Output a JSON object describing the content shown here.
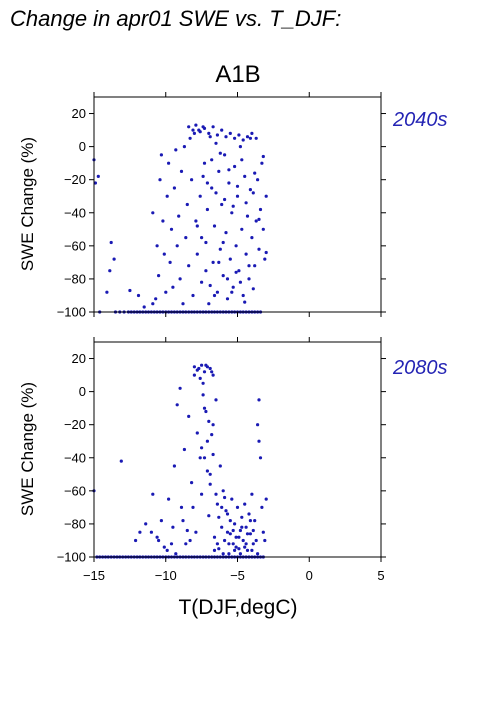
{
  "title": "Change in apr01 SWE vs. T_DJF:",
  "scenario": "A1B",
  "colors": {
    "points": "#1a1ab4",
    "period_label": "#2424b4"
  },
  "chart_data": [
    {
      "type": "scatter",
      "period_label": "2040s",
      "ylabel": "SWE Change (%)",
      "xlabel": "",
      "xlim": [
        -15,
        5
      ],
      "ylim": [
        -100,
        30
      ],
      "xticks": [
        -15,
        -10,
        -5,
        0,
        5
      ],
      "yticks": [
        -100,
        -80,
        -60,
        -40,
        -20,
        0,
        20
      ],
      "grid": false,
      "points": [
        [
          -15.0,
          -8
        ],
        [
          -14.9,
          -22
        ],
        [
          -14.7,
          -18
        ],
        [
          -14.6,
          -100
        ],
        [
          -14.1,
          -88
        ],
        [
          -13.9,
          -75
        ],
        [
          -13.8,
          -58
        ],
        [
          -13.6,
          -68
        ],
        [
          -13.5,
          -100
        ],
        [
          -13.2,
          -100
        ],
        [
          -12.9,
          -100
        ],
        [
          -12.6,
          -100
        ],
        [
          -12.4,
          -100
        ],
        [
          -12.2,
          -100
        ],
        [
          -12.0,
          -100
        ],
        [
          -11.8,
          -100
        ],
        [
          -11.6,
          -100
        ],
        [
          -11.4,
          -100
        ],
        [
          -11.2,
          -100
        ],
        [
          -11.0,
          -100
        ],
        [
          -10.8,
          -100
        ],
        [
          -10.6,
          -100
        ],
        [
          -10.4,
          -100
        ],
        [
          -10.2,
          -100
        ],
        [
          -10.0,
          -100
        ],
        [
          -9.8,
          -100
        ],
        [
          -9.6,
          -100
        ],
        [
          -9.4,
          -100
        ],
        [
          -9.2,
          -100
        ],
        [
          -9.0,
          -100
        ],
        [
          -8.8,
          -100
        ],
        [
          -8.6,
          -100
        ],
        [
          -8.4,
          -100
        ],
        [
          -8.2,
          -100
        ],
        [
          -8.0,
          -100
        ],
        [
          -7.8,
          -100
        ],
        [
          -7.6,
          -100
        ],
        [
          -7.4,
          -100
        ],
        [
          -7.2,
          -100
        ],
        [
          -7.0,
          -100
        ],
        [
          -6.8,
          -100
        ],
        [
          -6.6,
          -100
        ],
        [
          -6.4,
          -100
        ],
        [
          -6.2,
          -100
        ],
        [
          -6.0,
          -100
        ],
        [
          -5.8,
          -100
        ],
        [
          -5.6,
          -100
        ],
        [
          -5.4,
          -100
        ],
        [
          -5.2,
          -100
        ],
        [
          -5.0,
          -100
        ],
        [
          -4.8,
          -100
        ],
        [
          -4.6,
          -100
        ],
        [
          -4.4,
          -100
        ],
        [
          -4.2,
          -100
        ],
        [
          -4.0,
          -100
        ],
        [
          -3.8,
          -100
        ],
        [
          -3.6,
          -100
        ],
        [
          -3.4,
          -100
        ],
        [
          -12.5,
          -87
        ],
        [
          -11.9,
          -90
        ],
        [
          -11.5,
          -97
        ],
        [
          -10.9,
          -95
        ],
        [
          -10.7,
          -92
        ],
        [
          -10.9,
          -40
        ],
        [
          -10.6,
          -60
        ],
        [
          -10.5,
          -78
        ],
        [
          -10.4,
          -20
        ],
        [
          -10.3,
          -5
        ],
        [
          -10.2,
          -45
        ],
        [
          -10.1,
          -65
        ],
        [
          -10.0,
          -88
        ],
        [
          -9.9,
          -30
        ],
        [
          -9.8,
          -10
        ],
        [
          -9.7,
          -70
        ],
        [
          -9.6,
          -50
        ],
        [
          -9.5,
          -85
        ],
        [
          -9.4,
          -25
        ],
        [
          -9.3,
          -2
        ],
        [
          -9.2,
          -60
        ],
        [
          -9.1,
          -42
        ],
        [
          -9.0,
          -80
        ],
        [
          -8.9,
          -15
        ],
        [
          -8.8,
          -95
        ],
        [
          -8.7,
          0
        ],
        [
          -8.6,
          -55
        ],
        [
          -8.5,
          -35
        ],
        [
          -8.4,
          -72
        ],
        [
          -8.3,
          5
        ],
        [
          -8.2,
          -20
        ],
        [
          -8.1,
          -90
        ],
        [
          -8.0,
          8
        ],
        [
          -7.9,
          -45
        ],
        [
          -7.8,
          -65
        ],
        [
          -7.7,
          10
        ],
        [
          -7.6,
          -30
        ],
        [
          -7.5,
          -82
        ],
        [
          -7.4,
          12
        ],
        [
          -7.3,
          -10
        ],
        [
          -7.2,
          -58
        ],
        [
          -7.1,
          -38
        ],
        [
          -7.0,
          -95
        ],
        [
          -6.9,
          6
        ],
        [
          -6.8,
          -25
        ],
        [
          -6.7,
          -70
        ],
        [
          -6.6,
          -48
        ],
        [
          -6.5,
          2
        ],
        [
          -6.4,
          -88
        ],
        [
          -6.3,
          -15
        ],
        [
          -6.2,
          -62
        ],
        [
          -6.1,
          -35
        ],
        [
          -6.0,
          -78
        ],
        [
          -5.9,
          -5
        ],
        [
          -5.8,
          -52
        ],
        [
          -5.7,
          -92
        ],
        [
          -5.6,
          -22
        ],
        [
          -5.5,
          -68
        ],
        [
          -5.4,
          -40
        ],
        [
          -5.3,
          -85
        ],
        [
          -5.2,
          -12
        ],
        [
          -5.1,
          -60
        ],
        [
          -5.0,
          -30
        ],
        [
          -4.9,
          -75
        ],
        [
          -4.8,
          0
        ],
        [
          -4.7,
          -50
        ],
        [
          -4.6,
          -90
        ],
        [
          -4.5,
          -18
        ],
        [
          -4.4,
          -65
        ],
        [
          -4.3,
          -42
        ],
        [
          -4.2,
          -80
        ],
        [
          -4.1,
          5
        ],
        [
          -4.0,
          -55
        ],
        [
          -3.9,
          -28
        ],
        [
          -3.8,
          -72
        ],
        [
          -3.7,
          -45
        ],
        [
          -3.6,
          -20
        ],
        [
          -3.5,
          -62
        ],
        [
          -3.4,
          -38
        ],
        [
          -3.3,
          -10
        ],
        [
          -3.2,
          -50
        ],
        [
          -3.1,
          -68
        ],
        [
          -3.0,
          -30
        ],
        [
          -8.4,
          12
        ],
        [
          -8.1,
          10
        ],
        [
          -7.9,
          13
        ],
        [
          -7.6,
          9
        ],
        [
          -7.3,
          11
        ],
        [
          -7.0,
          8
        ],
        [
          -6.7,
          12
        ],
        [
          -6.4,
          7
        ],
        [
          -6.1,
          10
        ],
        [
          -5.8,
          6
        ],
        [
          -5.5,
          8
        ],
        [
          -5.2,
          5
        ],
        [
          -4.9,
          7
        ],
        [
          -4.6,
          4
        ],
        [
          -4.3,
          6
        ],
        [
          -4.0,
          8
        ],
        [
          -3.7,
          5
        ],
        [
          -7.8,
          -48
        ],
        [
          -7.5,
          -55
        ],
        [
          -7.2,
          -75
        ],
        [
          -6.9,
          -84
        ],
        [
          -6.6,
          -90
        ],
        [
          -6.3,
          -70
        ],
        [
          -6.0,
          -58
        ],
        [
          -5.7,
          -80
        ],
        [
          -5.4,
          -88
        ],
        [
          -5.1,
          -76
        ],
        [
          -4.8,
          -82
        ],
        [
          -4.5,
          -94
        ],
        [
          -4.2,
          -72
        ],
        [
          -3.9,
          -86
        ],
        [
          -7.4,
          -18
        ],
        [
          -7.1,
          -22
        ],
        [
          -6.8,
          -8
        ],
        [
          -6.5,
          -28
        ],
        [
          -6.2,
          -4
        ],
        [
          -5.9,
          -32
        ],
        [
          -5.6,
          -14
        ],
        [
          -5.3,
          -36
        ],
        [
          -5.0,
          -24
        ],
        [
          -4.7,
          -8
        ],
        [
          -4.4,
          -34
        ],
        [
          -4.1,
          -26
        ],
        [
          -3.8,
          -16
        ],
        [
          -3.5,
          -44
        ],
        [
          -3.2,
          -6
        ],
        [
          -3.0,
          -64
        ]
      ]
    },
    {
      "type": "scatter",
      "period_label": "2080s",
      "ylabel": "SWE Change (%)",
      "xlabel": "T(DJF,degC)",
      "xlim": [
        -15,
        5
      ],
      "ylim": [
        -100,
        30
      ],
      "xticks": [
        -15,
        -10,
        -5,
        0,
        5
      ],
      "yticks": [
        -100,
        -80,
        -60,
        -40,
        -20,
        0,
        20
      ],
      "grid": false,
      "points": [
        [
          -15.0,
          -60
        ],
        [
          -14.8,
          -100
        ],
        [
          -14.6,
          -100
        ],
        [
          -14.4,
          -100
        ],
        [
          -14.2,
          -100
        ],
        [
          -14.0,
          -100
        ],
        [
          -13.8,
          -100
        ],
        [
          -13.6,
          -100
        ],
        [
          -13.4,
          -100
        ],
        [
          -13.2,
          -100
        ],
        [
          -13.0,
          -100
        ],
        [
          -12.8,
          -100
        ],
        [
          -12.6,
          -100
        ],
        [
          -12.4,
          -100
        ],
        [
          -12.2,
          -100
        ],
        [
          -12.0,
          -100
        ],
        [
          -11.8,
          -100
        ],
        [
          -11.6,
          -100
        ],
        [
          -11.4,
          -100
        ],
        [
          -11.2,
          -100
        ],
        [
          -11.0,
          -100
        ],
        [
          -10.8,
          -100
        ],
        [
          -10.6,
          -100
        ],
        [
          -10.4,
          -100
        ],
        [
          -10.2,
          -100
        ],
        [
          -10.0,
          -100
        ],
        [
          -9.8,
          -100
        ],
        [
          -9.6,
          -100
        ],
        [
          -9.4,
          -100
        ],
        [
          -9.2,
          -100
        ],
        [
          -9.0,
          -100
        ],
        [
          -8.8,
          -100
        ],
        [
          -8.6,
          -100
        ],
        [
          -8.4,
          -100
        ],
        [
          -8.2,
          -100
        ],
        [
          -8.0,
          -100
        ],
        [
          -7.8,
          -100
        ],
        [
          -7.6,
          -100
        ],
        [
          -7.4,
          -100
        ],
        [
          -7.2,
          -100
        ],
        [
          -7.0,
          -100
        ],
        [
          -6.8,
          -100
        ],
        [
          -6.6,
          -100
        ],
        [
          -6.4,
          -100
        ],
        [
          -6.2,
          -100
        ],
        [
          -6.0,
          -100
        ],
        [
          -5.8,
          -100
        ],
        [
          -5.6,
          -100
        ],
        [
          -5.4,
          -100
        ],
        [
          -5.2,
          -100
        ],
        [
          -5.0,
          -100
        ],
        [
          -4.8,
          -100
        ],
        [
          -4.6,
          -100
        ],
        [
          -4.4,
          -100
        ],
        [
          -4.2,
          -100
        ],
        [
          -4.0,
          -100
        ],
        [
          -3.8,
          -100
        ],
        [
          -3.6,
          -100
        ],
        [
          -3.4,
          -100
        ],
        [
          -3.2,
          -100
        ],
        [
          -13.1,
          -42
        ],
        [
          -12.1,
          -90
        ],
        [
          -11.8,
          -85
        ],
        [
          -11.4,
          -80
        ],
        [
          -10.9,
          -62
        ],
        [
          -10.6,
          -88
        ],
        [
          -10.3,
          -78
        ],
        [
          -10.1,
          -94
        ],
        [
          -9.8,
          -65
        ],
        [
          -9.5,
          -82
        ],
        [
          -9.4,
          -45
        ],
        [
          -9.2,
          -8
        ],
        [
          -9.0,
          2
        ],
        [
          -8.9,
          -70
        ],
        [
          -8.7,
          -35
        ],
        [
          -8.6,
          -92
        ],
        [
          -8.4,
          -15
        ],
        [
          -8.2,
          -55
        ],
        [
          -8.0,
          10
        ],
        [
          -7.9,
          -85
        ],
        [
          -7.8,
          -25
        ],
        [
          -7.7,
          14
        ],
        [
          -7.6,
          -40
        ],
        [
          -7.5,
          -62
        ],
        [
          -7.4,
          5
        ],
        [
          -7.3,
          -10
        ],
        [
          -7.2,
          16
        ],
        [
          -7.1,
          -30
        ],
        [
          -7.0,
          -75
        ],
        [
          -6.9,
          -50
        ],
        [
          -6.8,
          12
        ],
        [
          -6.7,
          -20
        ],
        [
          -6.6,
          -88
        ],
        [
          -6.5,
          -5
        ],
        [
          -6.4,
          -68
        ],
        [
          -6.3,
          -95
        ],
        [
          -6.2,
          -45
        ],
        [
          -6.1,
          -82
        ],
        [
          -6.0,
          -60
        ],
        [
          -5.9,
          -90
        ],
        [
          -5.8,
          -72
        ],
        [
          -5.7,
          -85
        ],
        [
          -5.6,
          -98
        ],
        [
          -5.5,
          -78
        ],
        [
          -5.4,
          -65
        ],
        [
          -5.3,
          -92
        ],
        [
          -5.2,
          -80
        ],
        [
          -5.1,
          -88
        ],
        [
          -5.0,
          -70
        ],
        [
          -4.9,
          -95
        ],
        [
          -4.8,
          -84
        ],
        [
          -4.7,
          -76
        ],
        [
          -4.6,
          -90
        ],
        [
          -4.5,
          -68
        ],
        [
          -4.4,
          -82
        ],
        [
          -4.3,
          -96
        ],
        [
          -4.2,
          -74
        ],
        [
          -4.1,
          -86
        ],
        [
          -4.0,
          -62
        ],
        [
          -3.9,
          -92
        ],
        [
          -3.8,
          -78
        ],
        [
          -3.6,
          -20
        ],
        [
          -3.5,
          -5
        ],
        [
          -3.4,
          -40
        ],
        [
          -3.3,
          -70
        ],
        [
          -3.2,
          -85
        ],
        [
          -3.0,
          -65
        ],
        [
          -3.1,
          -90
        ],
        [
          -3.5,
          -30
        ],
        [
          -8.0,
          15
        ],
        [
          -7.8,
          13
        ],
        [
          -7.5,
          16
        ],
        [
          -7.3,
          12
        ],
        [
          -7.1,
          15
        ],
        [
          -6.9,
          14
        ],
        [
          -6.7,
          10
        ],
        [
          -7.6,
          8
        ],
        [
          -7.4,
          -2
        ],
        [
          -7.2,
          -12
        ],
        [
          -7.0,
          -18
        ],
        [
          -6.8,
          -26
        ],
        [
          -7.5,
          -34
        ],
        [
          -7.3,
          -40
        ],
        [
          -7.1,
          -48
        ],
        [
          -6.9,
          -56
        ],
        [
          -6.7,
          -38
        ],
        [
          -6.5,
          -62
        ],
        [
          -6.3,
          -76
        ],
        [
          -6.1,
          -70
        ],
        [
          -5.9,
          -64
        ],
        [
          -5.7,
          -74
        ],
        [
          -5.5,
          -86
        ],
        [
          -5.3,
          -84
        ],
        [
          -5.1,
          -94
        ],
        [
          -4.9,
          -88
        ],
        [
          -4.7,
          -82
        ],
        [
          -4.5,
          -94
        ],
        [
          -4.3,
          -86
        ],
        [
          -4.1,
          -78
        ],
        [
          -3.9,
          -84
        ],
        [
          -3.7,
          -90
        ],
        [
          -11.0,
          -85
        ],
        [
          -10.5,
          -90
        ],
        [
          -9.9,
          -96
        ],
        [
          -9.6,
          -92
        ],
        [
          -9.3,
          -98
        ],
        [
          -8.8,
          -78
        ],
        [
          -8.5,
          -84
        ],
        [
          -8.3,
          -90
        ],
        [
          -8.1,
          -70
        ],
        [
          -6.6,
          -96
        ],
        [
          -6.4,
          -92
        ],
        [
          -6.0,
          -98
        ],
        [
          -5.6,
          -92
        ],
        [
          -5.2,
          -96
        ],
        [
          -4.8,
          -98
        ],
        [
          -4.4,
          -92
        ],
        [
          -4.0,
          -96
        ],
        [
          -3.6,
          -98
        ]
      ]
    }
  ]
}
